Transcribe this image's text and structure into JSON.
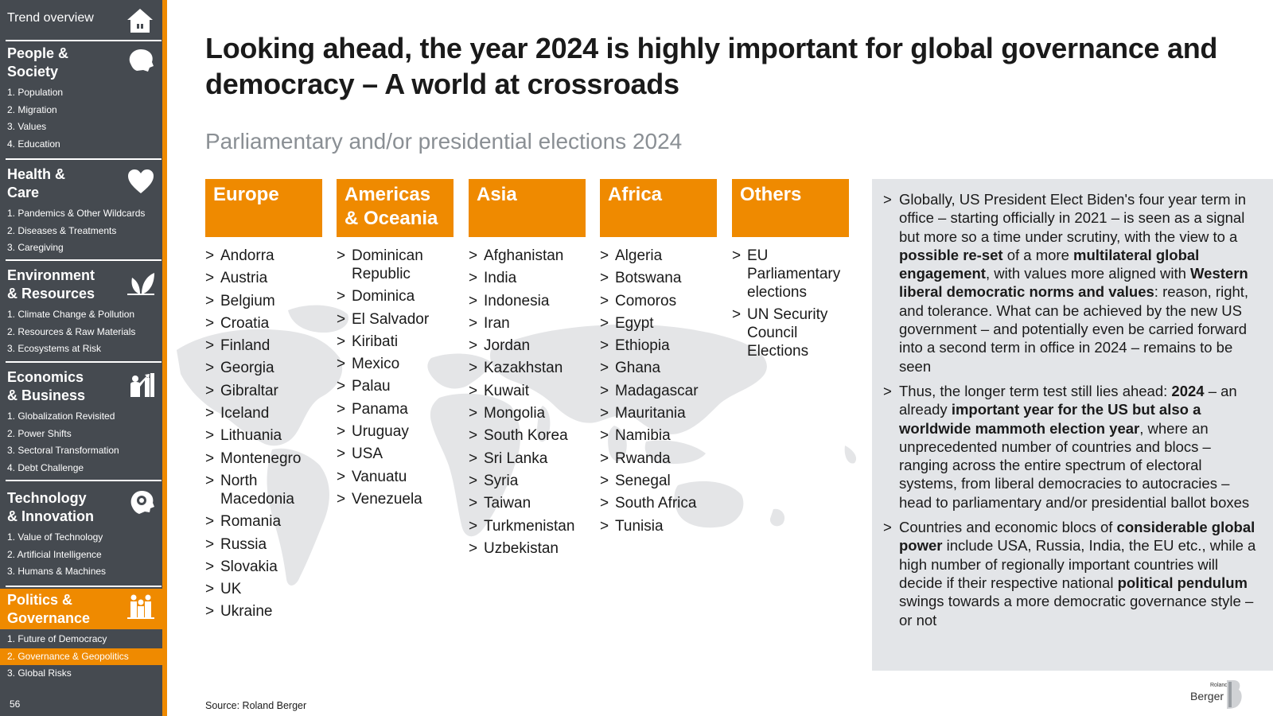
{
  "sidebar": {
    "overview_label": "Trend overview",
    "page_number": "56",
    "sections": [
      {
        "title_lines": [
          "People &",
          "Society"
        ],
        "icon": "head-icon",
        "items": [
          "1. Population",
          "2. Migration",
          "3. Values",
          "4. Education"
        ]
      },
      {
        "title_lines": [
          "Health &",
          "Care"
        ],
        "icon": "heart-icon",
        "items": [
          "1. Pandemics & Other Wildcards",
          "2. Diseases & Treatments",
          "3. Caregiving"
        ]
      },
      {
        "title_lines": [
          "Environment",
          "& Resources"
        ],
        "icon": "leaf-icon",
        "items": [
          "1. Climate Change & Pollution",
          "2. Resources & Raw Materials",
          "3. Ecosystems at Risk"
        ]
      },
      {
        "title_lines": [
          "Economics",
          "& Business"
        ],
        "icon": "business-chart-icon",
        "items": [
          "1. Globalization Revisited",
          "2. Power Shifts",
          "3. Sectoral Transformation",
          "4. Debt Challenge"
        ]
      },
      {
        "title_lines": [
          "Technology",
          "& Innovation"
        ],
        "icon": "gear-head-icon",
        "items": [
          "1. Value of Technology",
          "2. Artificial Intelligence",
          "3. Humans & Machines"
        ]
      },
      {
        "title_lines": [
          "Politics &",
          "Governance"
        ],
        "icon": "people-icon",
        "items": [
          "1. Future of Democracy",
          "2. Governance & Geopolitics",
          "3. Global Risks"
        ]
      }
    ]
  },
  "title": "Looking ahead, the year 2024 is highly important for global governance and democracy – A world at crossroads",
  "subtitle": "Parliamentary and/or presidential elections 2024",
  "regions": [
    {
      "name_lines": [
        "Europe"
      ],
      "countries": [
        "Andorra",
        "Austria",
        "Belgium",
        "Croatia",
        "Finland",
        "Georgia",
        "Gibraltar",
        "Iceland",
        "Lithuania",
        "Montenegro",
        "North Macedonia",
        "Romania",
        "Russia",
        "Slovakia",
        "UK",
        "Ukraine"
      ]
    },
    {
      "name_lines": [
        "Americas",
        "& Oceania"
      ],
      "countries": [
        "Dominican Republic",
        "Dominica",
        "El Salvador",
        "Kiribati",
        "Mexico",
        "Palau",
        "Panama",
        "Uruguay",
        "USA",
        "Vanuatu",
        "Venezuela"
      ]
    },
    {
      "name_lines": [
        "Asia"
      ],
      "countries": [
        "Afghanistan",
        "India",
        "Indonesia",
        "Iran",
        "Jordan",
        "Kazakhstan",
        "Kuwait",
        "Mongolia",
        "South Korea",
        "Sri Lanka",
        "Syria",
        "Taiwan",
        "Turkmenistan",
        "Uzbekistan"
      ]
    },
    {
      "name_lines": [
        "Africa"
      ],
      "countries": [
        "Algeria",
        "Botswana",
        "Comoros",
        "Egypt",
        "Ethiopia",
        "Ghana",
        "Madagascar",
        "Mauritania",
        "Namibia",
        "Rwanda",
        "Senegal",
        "South Africa",
        "Tunisia"
      ]
    },
    {
      "name_lines": [
        "Others"
      ],
      "countries": [
        "EU Parliamentary elections",
        "UN Security Council Elections"
      ]
    }
  ],
  "right_box": {
    "paragraphs": [
      [
        {
          "t": "Globally, US President Elect Biden's four year term in office – starting officially in 2021 – is seen as a signal but more so a time under scrutiny, with the view to a "
        },
        {
          "t": "possible re-set",
          "b": true
        },
        {
          "t": " of a more "
        },
        {
          "t": "multilateral global engagement",
          "b": true
        },
        {
          "t": ", with values more aligned with "
        },
        {
          "t": "Western liberal democratic norms and values",
          "b": true
        },
        {
          "t": ": reason, right, and tolerance. What can be achieved by the new US government – and potentially even be carried forward into a second term in office in 2024 – remains to be seen"
        }
      ],
      [
        {
          "t": "Thus, the longer term test still lies ahead: "
        },
        {
          "t": "2024",
          "b": true
        },
        {
          "t": " – an already "
        },
        {
          "t": "important year for the US but also a worldwide mammoth election year",
          "b": true
        },
        {
          "t": ", where an unprecedented number of countries and blocs – ranging across the entire spectrum of electoral systems, from liberal democracies to autocracies – head to parliamentary and/or presidential ballot boxes"
        }
      ],
      [
        {
          "t": "Countries and economic blocs of "
        },
        {
          "t": "considerable global power",
          "b": true
        },
        {
          "t": " include USA, Russia, India, the EU etc., while a high number of regionally important countries will decide if their respective national "
        },
        {
          "t": "political pendulum",
          "b": true
        },
        {
          "t": " swings towards a more democratic governance style – or not"
        }
      ]
    ]
  },
  "source": "Source: Roland Berger",
  "logo": {
    "small": "Roland",
    "big": "Berger"
  },
  "colors": {
    "accent": "#ef8a00",
    "sidebar": "#454a50",
    "box": "#e3e5e8",
    "map": "#e4e5e7"
  }
}
